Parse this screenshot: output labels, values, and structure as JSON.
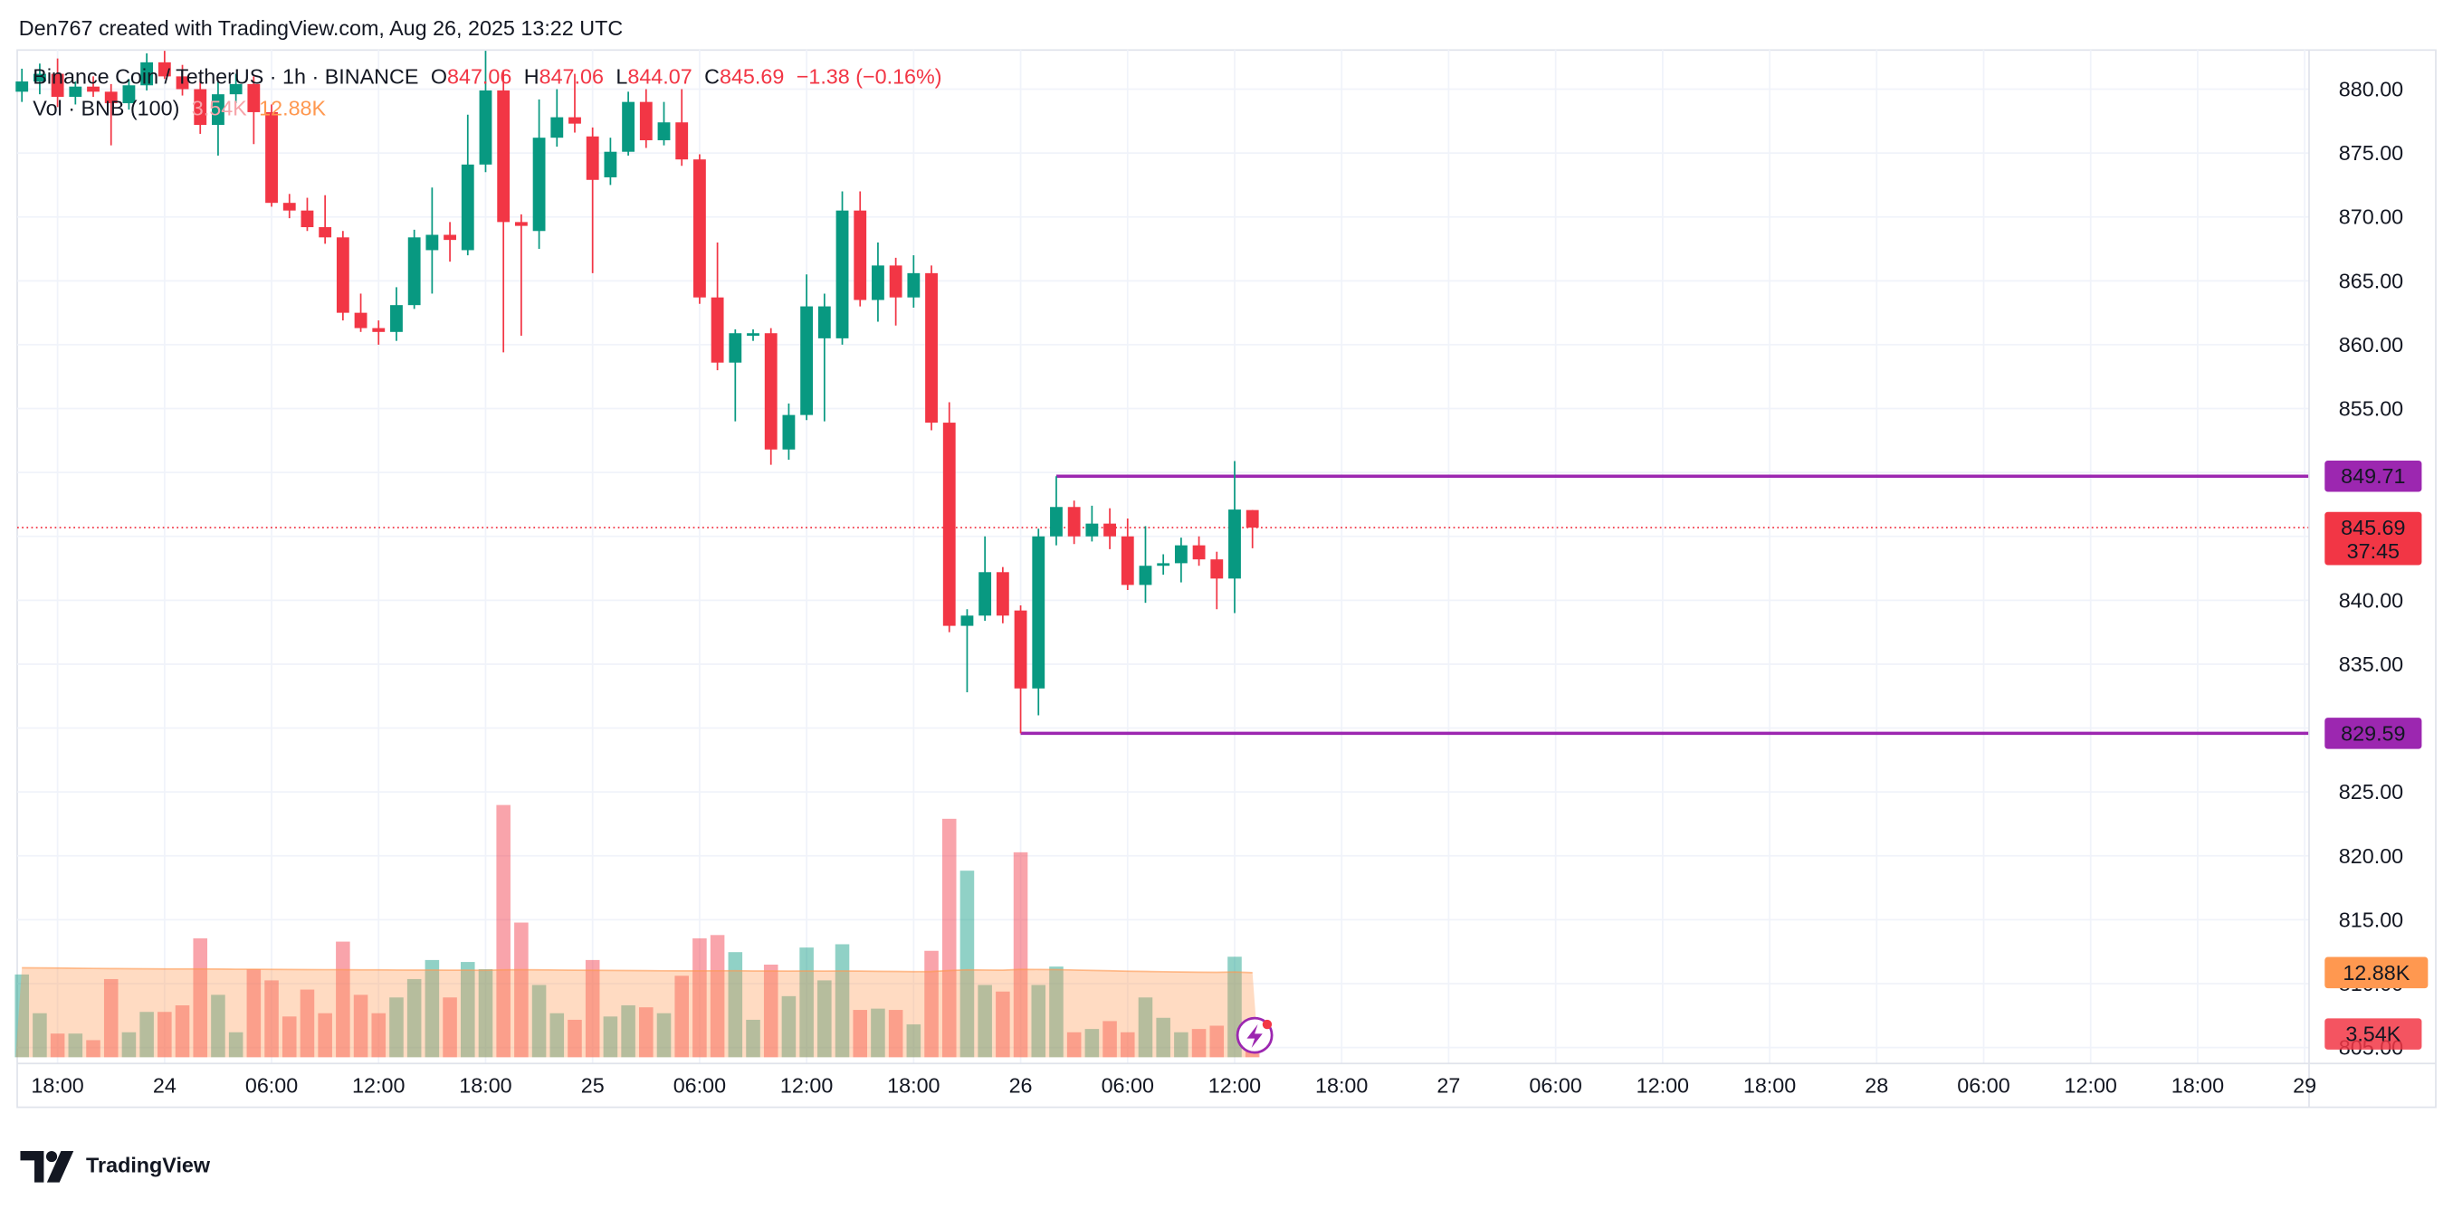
{
  "header": {
    "text": "Den767 created with TradingView.com, Aug 26, 2025 13:22 UTC"
  },
  "footer": {
    "brand": "TradingView"
  },
  "chart_data": {
    "type": "candlestick",
    "title": "Binance Coin / TetherUS · 1h · BINANCE",
    "ohlc_labels": [
      "O",
      "H",
      "L",
      "C"
    ],
    "change": "−1.38 (−0.16%)",
    "countdown": "37:45",
    "up_color": "#089981",
    "down_color": "#f23645",
    "grid": true,
    "ylim": [
      803.75,
      883.06
    ],
    "yticks": [
      {
        "value": 805,
        "label": "805.00"
      },
      {
        "value": 810,
        "label": "810.00"
      },
      {
        "value": 815,
        "label": "815.00"
      },
      {
        "value": 820,
        "label": "820.00"
      },
      {
        "value": 825,
        "label": "825.00"
      },
      {
        "value": 830,
        "label": "830.00"
      },
      {
        "value": 835,
        "label": "835.00"
      },
      {
        "value": 840,
        "label": "840.00"
      },
      {
        "value": 845,
        "label": "845.00"
      },
      {
        "value": 850,
        "label": "850.00"
      },
      {
        "value": 855,
        "label": "855.00"
      },
      {
        "value": 860,
        "label": "860.00"
      },
      {
        "value": 865,
        "label": "865.00"
      },
      {
        "value": 870,
        "label": "870.00"
      },
      {
        "value": 875,
        "label": "875.00"
      },
      {
        "value": 880,
        "label": "880.00"
      }
    ],
    "price_lines": [
      {
        "value": 849.71,
        "color": "#9c27b0"
      },
      {
        "value": 829.59,
        "color": "#9c27b0"
      }
    ],
    "categories": [
      null,
      null,
      "18:00",
      null,
      null,
      null,
      null,
      null,
      "24",
      null,
      null,
      null,
      null,
      null,
      "06:00",
      null,
      null,
      null,
      null,
      null,
      "12:00",
      null,
      null,
      null,
      null,
      null,
      "18:00",
      null,
      null,
      null,
      null,
      null,
      "25",
      null,
      null,
      null,
      null,
      null,
      "06:00",
      null,
      null,
      null,
      null,
      null,
      "12:00",
      null,
      null,
      null,
      null,
      null,
      "18:00",
      null,
      null,
      null,
      null,
      null,
      "26",
      null,
      null,
      null,
      null,
      null,
      "06:00",
      null,
      null,
      null,
      null,
      null,
      "12:00",
      null,
      null,
      null,
      null,
      null,
      "18:00",
      null,
      null,
      null,
      null,
      null,
      "27",
      null,
      null,
      null,
      null,
      null,
      "06:00",
      null,
      null,
      null,
      null,
      null,
      "12:00",
      null,
      null,
      null,
      null,
      null,
      "18:00",
      null,
      null,
      null,
      null,
      null,
      "28",
      null,
      null,
      null,
      null,
      null,
      "06:00",
      null,
      null,
      null,
      null,
      null,
      "12:00",
      null,
      null,
      null,
      null,
      null,
      "18:00",
      null,
      null,
      null,
      null,
      null,
      "29"
    ],
    "open": [
      879.8,
      880.6,
      881.2,
      879.4,
      880.2,
      879.8,
      878.9,
      880.3,
      882.1,
      881.0,
      880.0,
      877.2,
      879.6,
      880.4,
      878.2,
      871.1,
      870.5,
      869.2,
      868.4,
      862.5,
      861.3,
      861.0,
      863.1,
      867.4,
      868.6,
      867.4,
      874.1,
      879.9,
      869.6,
      868.9,
      876.2,
      877.8,
      876.3,
      873.1,
      875.1,
      879.0,
      876.0,
      877.4,
      874.5,
      863.7,
      858.6,
      860.7,
      860.9,
      851.8,
      854.5,
      860.5,
      860.5,
      870.5,
      863.5,
      866.2,
      863.7,
      865.6,
      853.9,
      838.0,
      838.8,
      842.2,
      839.2,
      833.1,
      845.0,
      847.3,
      845.0,
      846.0,
      845.0,
      841.2,
      842.7,
      842.9,
      844.3,
      843.2,
      841.7,
      847.06,
      null,
      null,
      null,
      null,
      null,
      null,
      null,
      null,
      null,
      null,
      null,
      null,
      null,
      null,
      null,
      null,
      null,
      null,
      null,
      null,
      null,
      null,
      null,
      null,
      null,
      null,
      null,
      null,
      null,
      null,
      null,
      null,
      null,
      null,
      null,
      null,
      null,
      null,
      null,
      null,
      null,
      null,
      null,
      null,
      null,
      null,
      null,
      null,
      null,
      null,
      null,
      null,
      null,
      null,
      null,
      null,
      null,
      null,
      null
    ],
    "high": [
      881.6,
      882.0,
      882.4,
      880.6,
      881.0,
      880.4,
      880.8,
      882.8,
      883.0,
      881.9,
      880.8,
      880.6,
      881.2,
      881.0,
      878.8,
      871.8,
      871.5,
      871.7,
      868.9,
      864.0,
      861.9,
      864.5,
      869.0,
      872.3,
      869.6,
      878.0,
      883.0,
      881.5,
      870.2,
      879.2,
      880.0,
      881.2,
      877.0,
      876.2,
      879.8,
      880.0,
      879.0,
      880.0,
      874.9,
      868.0,
      861.2,
      861.2,
      861.3,
      855.4,
      865.5,
      864.0,
      872.0,
      872.0,
      868.0,
      866.8,
      867.0,
      866.2,
      855.5,
      839.3,
      845.0,
      842.6,
      839.6,
      845.6,
      849.71,
      847.8,
      847.4,
      847.2,
      846.4,
      845.8,
      843.6,
      844.9,
      845.0,
      843.8,
      850.9,
      847.06,
      null,
      null,
      null,
      null,
      null,
      null,
      null,
      null,
      null,
      null,
      null,
      null,
      null,
      null,
      null,
      null,
      null,
      null,
      null,
      null,
      null,
      null,
      null,
      null,
      null,
      null,
      null,
      null,
      null,
      null,
      null,
      null,
      null,
      null,
      null,
      null,
      null,
      null,
      null,
      null,
      null,
      null,
      null,
      null,
      null,
      null,
      null,
      null,
      null,
      null,
      null,
      null,
      null,
      null,
      null,
      null,
      null,
      null,
      null
    ],
    "low": [
      879.0,
      879.6,
      878.6,
      878.8,
      879.4,
      875.6,
      878.4,
      879.9,
      880.8,
      879.5,
      876.5,
      874.8,
      878.9,
      875.7,
      870.8,
      869.9,
      868.9,
      867.9,
      861.9,
      861.0,
      860.0,
      860.3,
      862.8,
      864.0,
      866.5,
      867.0,
      873.5,
      859.4,
      860.7,
      867.5,
      875.5,
      876.6,
      865.6,
      872.5,
      874.8,
      875.4,
      875.6,
      874.0,
      863.2,
      858.0,
      854.0,
      860.3,
      850.6,
      851.0,
      854.1,
      854.0,
      860.0,
      863.0,
      861.8,
      861.5,
      862.9,
      853.3,
      837.5,
      832.8,
      838.4,
      838.2,
      829.59,
      831.0,
      844.3,
      844.4,
      844.6,
      844.0,
      840.8,
      839.8,
      842.0,
      841.4,
      842.7,
      839.3,
      839.0,
      844.07,
      null,
      null,
      null,
      null,
      null,
      null,
      null,
      null,
      null,
      null,
      null,
      null,
      null,
      null,
      null,
      null,
      null,
      null,
      null,
      null,
      null,
      null,
      null,
      null,
      null,
      null,
      null,
      null,
      null,
      null,
      null,
      null,
      null,
      null,
      null,
      null,
      null,
      null,
      null,
      null,
      null,
      null,
      null,
      null,
      null,
      null,
      null,
      null,
      null,
      null,
      null,
      null,
      null,
      null,
      null,
      null,
      null,
      null,
      null
    ],
    "close": [
      880.6,
      881.2,
      879.4,
      880.2,
      879.8,
      878.9,
      880.3,
      882.1,
      881.0,
      880.0,
      877.2,
      879.6,
      880.4,
      878.2,
      871.1,
      870.5,
      869.2,
      868.4,
      862.5,
      861.3,
      861.0,
      863.1,
      868.4,
      868.6,
      868.2,
      874.1,
      879.9,
      869.6,
      869.3,
      876.2,
      877.8,
      877.3,
      872.9,
      875.1,
      879.0,
      876.0,
      877.4,
      874.5,
      863.7,
      858.6,
      860.9,
      860.9,
      851.8,
      854.5,
      863.0,
      863.0,
      870.5,
      863.5,
      866.2,
      863.7,
      865.6,
      853.9,
      838.0,
      838.8,
      842.2,
      838.8,
      833.1,
      845.0,
      847.3,
      845.0,
      846.0,
      845.0,
      841.2,
      842.7,
      842.9,
      844.3,
      843.2,
      841.7,
      847.1,
      845.69,
      null,
      null,
      null,
      null,
      null,
      null,
      null,
      null,
      null,
      null,
      null,
      null,
      null,
      null,
      null,
      null,
      null,
      null,
      null,
      null,
      null,
      null,
      null,
      null,
      null,
      null,
      null,
      null,
      null,
      null,
      null,
      null,
      null,
      null,
      null,
      null,
      null,
      null,
      null,
      null,
      null,
      null,
      null,
      null,
      null,
      null,
      null,
      null,
      null,
      null,
      null,
      null,
      null,
      null,
      null,
      null,
      null,
      null,
      null
    ],
    "volume": {
      "name": "Vol · BNB (100)",
      "ylim": [
        0,
        40
      ],
      "up_color": "rgba(8,153,129,0.45)",
      "down_color": "rgba(242,54,69,0.45)",
      "ma_color": "#ff9850",
      "values": [
        12.6,
        6.7,
        3.6,
        3.6,
        2.6,
        11.9,
        3.8,
        6.9,
        6.9,
        7.9,
        18.1,
        9.5,
        3.8,
        13.4,
        11.7,
        6.2,
        10.3,
        6.7,
        17.6,
        9.5,
        6.7,
        9.1,
        11.9,
        14.8,
        9.1,
        14.5,
        13.4,
        38.4,
        20.5,
        11.0,
        6.7,
        5.7,
        14.8,
        6.2,
        7.9,
        7.6,
        6.7,
        12.4,
        18.1,
        18.6,
        16.0,
        5.7,
        14.1,
        9.3,
        16.7,
        11.7,
        17.2,
        7.2,
        7.4,
        7.2,
        5.0,
        16.2,
        36.3,
        28.4,
        11.0,
        10.0,
        31.2,
        11.0,
        13.8,
        3.8,
        4.3,
        5.5,
        3.8,
        9.1,
        6.0,
        3.8,
        4.3,
        4.8,
        15.3,
        3.54,
        null,
        null,
        null,
        null,
        null,
        null,
        null,
        null,
        null,
        null,
        null,
        null,
        null,
        null,
        null,
        null,
        null,
        null,
        null,
        null,
        null,
        null,
        null,
        null,
        null,
        null,
        null,
        null,
        null,
        null,
        null,
        null,
        null,
        null,
        null,
        null,
        null,
        null,
        null,
        null,
        null,
        null,
        null,
        null,
        null,
        null,
        null,
        null,
        null,
        null,
        null,
        null,
        null,
        null,
        null,
        null,
        null,
        null,
        null
      ],
      "value_labels": [
        null,
        null,
        null,
        null,
        null,
        null,
        null,
        null,
        null,
        null,
        null,
        null,
        null,
        null,
        null,
        null,
        null,
        null,
        null,
        null,
        null,
        null,
        null,
        null,
        null,
        null,
        null,
        null,
        null,
        null,
        null,
        null,
        null,
        null,
        null,
        null,
        null,
        null,
        null,
        null,
        null,
        null,
        null,
        null,
        null,
        null,
        null,
        null,
        null,
        null,
        null,
        null,
        null,
        null,
        null,
        null,
        null,
        null,
        null,
        null,
        null,
        null,
        null,
        null,
        null,
        null,
        null,
        null,
        null,
        "3.54K",
        null,
        null,
        null,
        null,
        null,
        null,
        null,
        null,
        null,
        null,
        null,
        null,
        null,
        null,
        null,
        null,
        null,
        null,
        null,
        null,
        null,
        null,
        null,
        null,
        null,
        null,
        null,
        null,
        null,
        null,
        null,
        null,
        null,
        null,
        null,
        null,
        null,
        null,
        null,
        null,
        null,
        null,
        null,
        null,
        null,
        null,
        null,
        null,
        null,
        null,
        null,
        null,
        null,
        null,
        null,
        null,
        null,
        null,
        null
      ],
      "ma_values": [
        13.62,
        13.6,
        13.58,
        13.55,
        13.52,
        13.5,
        13.48,
        13.46,
        13.45,
        13.44,
        13.45,
        13.43,
        13.4,
        13.4,
        13.38,
        13.36,
        13.34,
        13.33,
        13.33,
        13.31,
        13.3,
        13.28,
        13.27,
        13.27,
        13.25,
        13.25,
        13.24,
        13.3,
        13.32,
        13.3,
        13.28,
        13.25,
        13.24,
        13.22,
        13.2,
        13.18,
        13.16,
        13.15,
        13.15,
        13.16,
        13.17,
        13.14,
        13.14,
        13.12,
        13.13,
        13.12,
        13.14,
        13.11,
        13.08,
        13.06,
        13.03,
        13.05,
        13.2,
        13.3,
        13.28,
        13.26,
        13.38,
        13.36,
        13.34,
        13.28,
        13.22,
        13.17,
        13.1,
        13.06,
        13.02,
        12.98,
        12.95,
        12.92,
        12.98,
        12.88,
        null,
        null,
        null,
        null,
        null,
        null,
        null,
        null,
        null,
        null,
        null,
        null,
        null,
        null,
        null,
        null,
        null,
        null,
        null,
        null,
        null,
        null,
        null,
        null,
        null,
        null,
        null,
        null,
        null,
        null,
        null,
        null,
        null,
        null,
        null,
        null,
        null,
        null,
        null,
        null,
        null,
        null,
        null,
        null,
        null,
        null,
        null,
        null,
        null,
        null,
        null,
        null,
        null,
        null,
        null,
        null,
        null,
        null,
        null
      ],
      "ma_value_labels": [
        null,
        null,
        null,
        null,
        null,
        null,
        null,
        null,
        null,
        null,
        null,
        null,
        null,
        null,
        null,
        null,
        null,
        null,
        null,
        null,
        null,
        null,
        null,
        null,
        null,
        null,
        null,
        null,
        null,
        null,
        null,
        null,
        null,
        null,
        null,
        null,
        null,
        null,
        null,
        null,
        null,
        null,
        null,
        null,
        null,
        null,
        null,
        null,
        null,
        null,
        null,
        null,
        null,
        null,
        null,
        null,
        null,
        null,
        null,
        null,
        null,
        null,
        null,
        null,
        null,
        null,
        null,
        null,
        null,
        "12.88K",
        null,
        null,
        null,
        null,
        null,
        null,
        null,
        null,
        null,
        null,
        null,
        null,
        null,
        null,
        null,
        null,
        null,
        null,
        null,
        null,
        null,
        null,
        null,
        null,
        null,
        null,
        null,
        null,
        null,
        null,
        null,
        null,
        null,
        null,
        null,
        null,
        null,
        null,
        null,
        null,
        null,
        null,
        null,
        null,
        null,
        null,
        null,
        null,
        null,
        null,
        null,
        null,
        null,
        null,
        null,
        null,
        null,
        null,
        null
      ]
    }
  }
}
